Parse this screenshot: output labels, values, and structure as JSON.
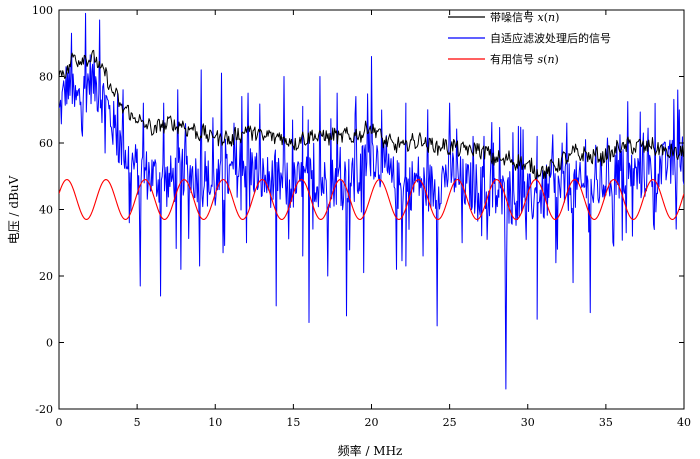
{
  "chart_data": {
    "type": "line",
    "xlabel": "频率 / MHz",
    "ylabel": "电压 / dBuV",
    "xlim": [
      0,
      40
    ],
    "ylim": [
      -20,
      100
    ],
    "x_ticks": [
      "0",
      "5",
      "10",
      "15",
      "20",
      "25",
      "30",
      "35",
      "40"
    ],
    "y_ticks": [
      "-20",
      "0",
      "20",
      "40",
      "60",
      "80",
      "100"
    ],
    "grid": false,
    "legend_position": "top-right",
    "series": [
      {
        "name": "带噪信号 x(n)",
        "name_parts": {
          "text": "带噪信号 ",
          "var": "x",
          "open": "(",
          "arg": "n",
          "close": ")"
        },
        "color": "#000000",
        "x": [
          0,
          0.5,
          1,
          1.5,
          2,
          2.5,
          3,
          3.5,
          4,
          5,
          6,
          7,
          8,
          9,
          10,
          11,
          12,
          13,
          14,
          15,
          16,
          17,
          18,
          19,
          20,
          21,
          22,
          23,
          24,
          25,
          26,
          27,
          28,
          29,
          30,
          31,
          32,
          33,
          34,
          35,
          36,
          37,
          38,
          39,
          40
        ],
        "y": [
          80,
          82,
          86,
          85,
          86,
          84,
          80,
          75,
          71,
          67,
          64,
          66,
          65,
          63,
          62,
          61,
          64,
          62,
          62,
          60,
          62,
          62,
          62,
          62,
          65,
          60,
          59,
          61,
          59,
          59,
          58,
          58,
          55,
          55,
          53,
          51,
          54,
          57,
          56,
          56,
          59,
          59,
          59,
          57,
          57
        ]
      },
      {
        "name": "自适应滤波处理后的信号",
        "color": "#0000ff",
        "x": [
          0,
          0.5,
          1,
          1.5,
          2,
          2.5,
          3,
          3.5,
          4,
          5,
          6,
          7,
          8,
          9,
          10,
          11,
          12,
          13,
          14,
          15,
          16,
          17,
          18,
          19,
          20,
          21,
          22,
          23,
          24,
          25,
          26,
          27,
          28,
          29,
          30,
          31,
          32,
          33,
          34,
          35,
          36,
          37,
          38,
          39,
          40
        ],
        "y": [
          68,
          78,
          72,
          74,
          80,
          76,
          72,
          65,
          58,
          52,
          50,
          48,
          52,
          49,
          47,
          50,
          54,
          49,
          48,
          47,
          49,
          48,
          49,
          48,
          58,
          50,
          46,
          49,
          46,
          52,
          47,
          46,
          44,
          43,
          43,
          44,
          46,
          47,
          45,
          49,
          51,
          50,
          52,
          53,
          56
        ],
        "peaks": [
          {
            "x": 0.8,
            "y": 93
          },
          {
            "x": 1.7,
            "y": 99
          },
          {
            "x": 2.6,
            "y": 97
          },
          {
            "x": 4.1,
            "y": 76
          },
          {
            "x": 5.4,
            "y": 72
          },
          {
            "x": 6.7,
            "y": 72
          },
          {
            "x": 7.6,
            "y": 76
          },
          {
            "x": 9.1,
            "y": 82
          },
          {
            "x": 10.4,
            "y": 81
          },
          {
            "x": 11.7,
            "y": 74
          },
          {
            "x": 12.1,
            "y": 75
          },
          {
            "x": 14.4,
            "y": 80
          },
          {
            "x": 15.6,
            "y": 71
          },
          {
            "x": 16.7,
            "y": 80
          },
          {
            "x": 17.8,
            "y": 75
          },
          {
            "x": 19.0,
            "y": 74
          },
          {
            "x": 20.0,
            "y": 86
          },
          {
            "x": 22.2,
            "y": 72
          },
          {
            "x": 23.6,
            "y": 70
          },
          {
            "x": 25.0,
            "y": 72
          },
          {
            "x": 26.5,
            "y": 62
          },
          {
            "x": 27.8,
            "y": 60
          },
          {
            "x": 29.4,
            "y": 65
          },
          {
            "x": 30.6,
            "y": 62
          },
          {
            "x": 32.2,
            "y": 60
          },
          {
            "x": 33.7,
            "y": 61
          },
          {
            "x": 35.7,
            "y": 60
          },
          {
            "x": 37.4,
            "y": 63
          },
          {
            "x": 39.0,
            "y": 59
          }
        ],
        "dips": [
          {
            "x": 4.5,
            "y": 36
          },
          {
            "x": 5.2,
            "y": 17
          },
          {
            "x": 6.5,
            "y": 14
          },
          {
            "x": 7.8,
            "y": 22
          },
          {
            "x": 9.0,
            "y": 23
          },
          {
            "x": 10.5,
            "y": 27
          },
          {
            "x": 12.0,
            "y": 30
          },
          {
            "x": 13.9,
            "y": 11
          },
          {
            "x": 15.6,
            "y": 26
          },
          {
            "x": 16.0,
            "y": 6
          },
          {
            "x": 17.2,
            "y": 20
          },
          {
            "x": 18.4,
            "y": 8
          },
          {
            "x": 19.5,
            "y": 21
          },
          {
            "x": 21.6,
            "y": 22
          },
          {
            "x": 22.2,
            "y": 23
          },
          {
            "x": 23.3,
            "y": 26
          },
          {
            "x": 24.2,
            "y": 5
          },
          {
            "x": 25.8,
            "y": 30
          },
          {
            "x": 27.4,
            "y": 31
          },
          {
            "x": 28.6,
            "y": -14
          },
          {
            "x": 29.9,
            "y": 31
          },
          {
            "x": 30.6,
            "y": 7
          },
          {
            "x": 31.8,
            "y": 24
          },
          {
            "x": 32.9,
            "y": 18
          },
          {
            "x": 34.0,
            "y": 9
          },
          {
            "x": 35.5,
            "y": 29
          },
          {
            "x": 36.7,
            "y": 32
          },
          {
            "x": 38.1,
            "y": 34
          }
        ]
      },
      {
        "name": "有用信号 s(n)",
        "name_parts": {
          "text": "有用信号 ",
          "var": "s",
          "open": "(",
          "arg": "n",
          "close": ")"
        },
        "color": "#ff0000",
        "x": [
          0,
          0.5,
          1,
          1.5,
          2,
          2.5,
          3,
          3.5,
          4,
          5,
          6,
          7,
          8,
          9,
          10,
          11,
          12,
          13,
          14,
          15,
          16,
          17,
          18,
          19,
          20,
          21,
          22,
          23,
          24,
          25,
          26,
          27,
          28,
          29,
          30,
          31,
          32,
          33,
          34,
          35,
          36,
          37,
          38,
          39,
          40
        ],
        "y": [
          45.0,
          48.3,
          47.5,
          43.1,
          40.9,
          44.0,
          48.8,
          47.8,
          42.3,
          46.8,
          44.7,
          41.6,
          48.5,
          39.2,
          48.1,
          47.0,
          46.0,
          37.0,
          48.6,
          40.7,
          40.5,
          48.5,
          38.3,
          44.7,
          48.1,
          37.2,
          46.0,
          48.8,
          36.6,
          45.3,
          49.0,
          38.3,
          37.8,
          48.7,
          46.5,
          36.0,
          44.6,
          48.7,
          40.3,
          40.4,
          49.1,
          44.9,
          40.6,
          43.4,
          48.1
        ]
      }
    ]
  }
}
